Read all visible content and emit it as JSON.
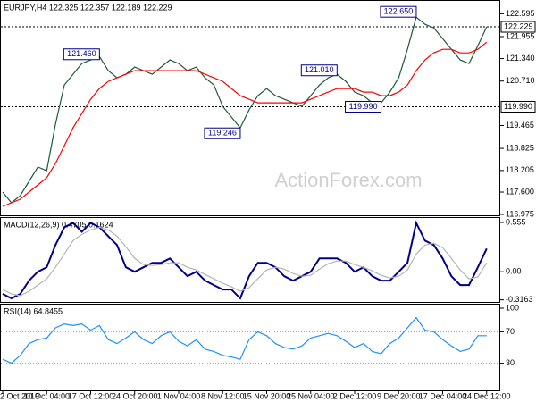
{
  "chart_data": [
    {
      "type": "line",
      "title": "EURJPY,H4  122.325 122.357 122.189 122.229",
      "watermark": "ActionForex.com",
      "categories": [
        "2 Oct 2019",
        null,
        null,
        null,
        null,
        "10 Oct 04:00",
        null,
        null,
        null,
        null,
        "17 Oct 12:00",
        null,
        null,
        null,
        null,
        "24 Oct 20:00",
        null,
        null,
        null,
        null,
        "1 Nov 04:00",
        null,
        null,
        null,
        null,
        "8 Nov 12:00",
        null,
        null,
        null,
        null,
        "15 Nov 20:00",
        null,
        null,
        null,
        null,
        "25 Nov 04:00",
        null,
        null,
        null,
        null,
        "2 Dec 12:00",
        null,
        null,
        null,
        null,
        "9 Dec 20:00",
        null,
        null,
        null,
        null,
        "17 Dec 04:00",
        null,
        null,
        null,
        null,
        "24 Dec 12:00"
      ],
      "series": [
        {
          "color": "#1f5a3c",
          "values": [
            117.6,
            117.3,
            117.5,
            117.9,
            118.3,
            118.2,
            119.5,
            120.6,
            120.9,
            121.2,
            121.3,
            121.4,
            121.0,
            120.8,
            120.9,
            121.1,
            121.0,
            120.9,
            121.1,
            121.3,
            121.2,
            121.0,
            121.1,
            120.8,
            120.6,
            120.0,
            119.7,
            119.4,
            119.9,
            120.3,
            120.5,
            120.3,
            120.2,
            120.1,
            120.0,
            120.3,
            120.6,
            120.8,
            120.9,
            120.7,
            120.4,
            120.3,
            120.1,
            120.1,
            120.4,
            120.8,
            121.6,
            122.5,
            122.3,
            122.2,
            121.9,
            121.6,
            121.3,
            121.2,
            121.7,
            122.23
          ]
        },
        {
          "color": "#ff0000",
          "values": [
            117.2,
            117.3,
            117.4,
            117.6,
            117.8,
            118.0,
            118.4,
            118.9,
            119.4,
            119.8,
            120.2,
            120.5,
            120.7,
            120.8,
            120.9,
            121.0,
            121.0,
            121.0,
            121.0,
            121.0,
            121.0,
            121.0,
            121.0,
            120.9,
            120.8,
            120.7,
            120.5,
            120.3,
            120.2,
            120.1,
            120.1,
            120.1,
            120.1,
            120.1,
            120.1,
            120.2,
            120.3,
            120.4,
            120.5,
            120.5,
            120.5,
            120.4,
            120.4,
            120.3,
            120.3,
            120.4,
            120.6,
            121.0,
            121.3,
            121.5,
            121.6,
            121.6,
            121.5,
            121.5,
            121.6,
            121.8
          ]
        }
      ],
      "ylim": [
        116.975,
        122.855
      ],
      "yticks": [
        116.975,
        {
          "value": 117.6,
          "label": "117.600"
        },
        118.205,
        118.825,
        119.465,
        {
          "value": 120.71,
          "label": "120.710"
        },
        {
          "value": 121.34,
          "label": "121.340"
        },
        121.955,
        122.595
      ],
      "hlines": [
        {
          "value": 122.229,
          "label": "122.229"
        },
        {
          "value": 119.99,
          "label": "119.990"
        }
      ],
      "annotations": [
        {
          "index": 47,
          "value": 122.65,
          "label": "122.650"
        },
        {
          "index": 11,
          "value": 121.46,
          "label": "121.460"
        },
        {
          "index": 38,
          "value": 121.01,
          "label": "121.010"
        },
        {
          "index": 43,
          "value": 119.99,
          "label": "119.990"
        },
        {
          "index": 27,
          "value": 119.246,
          "label": "119.246"
        }
      ]
    },
    {
      "type": "line",
      "title": "MACD(12,26,9) 0.4705 0.1624",
      "series": [
        {
          "color": "#00008b",
          "values": [
            -0.25,
            -0.3,
            -0.25,
            -0.1,
            0.0,
            0.05,
            0.3,
            0.5,
            0.55,
            0.45,
            0.55,
            0.5,
            0.4,
            0.3,
            0.05,
            0.0,
            0.05,
            0.1,
            0.1,
            0.15,
            0.05,
            -0.05,
            0.0,
            -0.1,
            -0.15,
            -0.2,
            -0.2,
            -0.3,
            -0.05,
            0.1,
            0.1,
            0.05,
            -0.05,
            -0.1,
            -0.05,
            0.0,
            0.15,
            0.15,
            0.15,
            0.1,
            0.0,
            0.05,
            -0.05,
            -0.1,
            -0.1,
            0.0,
            0.1,
            0.55,
            0.35,
            0.3,
            0.15,
            -0.05,
            -0.15,
            -0.15,
            0.05,
            0.26
          ]
        },
        {
          "color": "#b4b4b4",
          "values": [
            -0.2,
            -0.25,
            -0.27,
            -0.22,
            -0.15,
            -0.08,
            0.05,
            0.2,
            0.35,
            0.42,
            0.47,
            0.5,
            0.47,
            0.4,
            0.28,
            0.15,
            0.08,
            0.07,
            0.08,
            0.1,
            0.1,
            0.05,
            0.02,
            -0.03,
            -0.08,
            -0.13,
            -0.17,
            -0.22,
            -0.18,
            -0.08,
            0.02,
            0.05,
            0.03,
            -0.02,
            -0.05,
            -0.04,
            0.03,
            0.09,
            0.12,
            0.12,
            0.08,
            0.05,
            0.01,
            -0.04,
            -0.07,
            -0.05,
            0.02,
            0.2,
            0.3,
            0.32,
            0.27,
            0.15,
            0.02,
            -0.08,
            -0.06,
            0.1
          ]
        }
      ],
      "ylim": [
        -0.34,
        0.605
      ],
      "yticks": [
        -0.3163,
        {
          "value": 0,
          "label": "0.00"
        },
        0.555
      ]
    },
    {
      "type": "line",
      "title": "RSI(14) 64.8455",
      "series": [
        {
          "color": "#1e90ff",
          "values": [
            35,
            30,
            40,
            55,
            60,
            62,
            75,
            80,
            78,
            80,
            72,
            78,
            60,
            55,
            62,
            70,
            60,
            55,
            65,
            70,
            58,
            52,
            60,
            48,
            45,
            40,
            38,
            35,
            60,
            70,
            65,
            55,
            50,
            48,
            52,
            62,
            65,
            68,
            65,
            58,
            50,
            55,
            45,
            42,
            55,
            62,
            75,
            88,
            72,
            70,
            60,
            52,
            45,
            48,
            65,
            65
          ]
        }
      ],
      "ylim": [
        0,
        100
      ],
      "yticks": [
        30,
        70,
        100
      ],
      "grid": true
    }
  ]
}
